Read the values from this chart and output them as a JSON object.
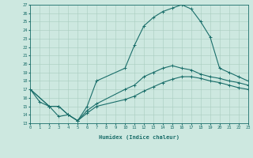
{
  "xlabel": "Humidex (Indice chaleur)",
  "xlim": [
    0,
    23
  ],
  "ylim": [
    13,
    27
  ],
  "xticks": [
    0,
    1,
    2,
    3,
    4,
    5,
    6,
    7,
    8,
    9,
    10,
    11,
    12,
    13,
    14,
    15,
    16,
    17,
    18,
    19,
    20,
    21,
    22,
    23
  ],
  "yticks": [
    13,
    14,
    15,
    16,
    17,
    18,
    19,
    20,
    21,
    22,
    23,
    24,
    25,
    26,
    27
  ],
  "background_color": "#cde8e0",
  "grid_color": "#a8ccbf",
  "line_color": "#1a6e6a",
  "curve_top_x": [
    0,
    1,
    2,
    3,
    4,
    5,
    6,
    7,
    10,
    11,
    12,
    13,
    14,
    15,
    16,
    17,
    18,
    19,
    20,
    21,
    22,
    23
  ],
  "curve_top_y": [
    17,
    15.5,
    15,
    13.8,
    14,
    13.3,
    15.0,
    18.0,
    19.5,
    22.2,
    24.5,
    25.5,
    26.2,
    26.6,
    27.0,
    26.5,
    25.0,
    23.2,
    19.5,
    19.0,
    18.5,
    18.0
  ],
  "curve_mid_x": [
    0,
    2,
    3,
    4,
    5,
    6,
    7,
    10,
    11,
    12,
    13,
    14,
    15,
    16,
    17,
    18,
    19,
    20,
    21,
    22,
    23
  ],
  "curve_mid_y": [
    17,
    15.0,
    15.0,
    14.0,
    13.3,
    14.5,
    15.3,
    17.0,
    17.5,
    18.5,
    19.0,
    19.5,
    19.8,
    19.5,
    19.3,
    18.8,
    18.5,
    18.3,
    18.0,
    17.8,
    17.5
  ],
  "curve_bot_x": [
    0,
    2,
    3,
    4,
    5,
    6,
    7,
    10,
    11,
    12,
    13,
    14,
    15,
    16,
    17,
    18,
    19,
    20,
    21,
    22,
    23
  ],
  "curve_bot_y": [
    17,
    15.0,
    15.0,
    14.0,
    13.3,
    14.2,
    15.0,
    15.8,
    16.2,
    16.8,
    17.3,
    17.8,
    18.2,
    18.5,
    18.5,
    18.3,
    18.0,
    17.8,
    17.5,
    17.2,
    17.0
  ]
}
